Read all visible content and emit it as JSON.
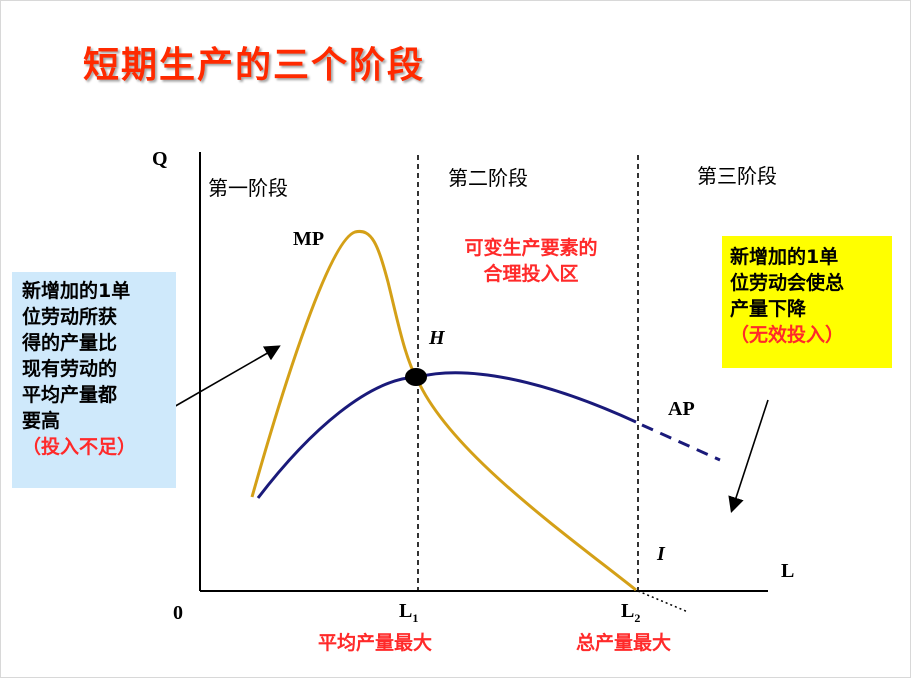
{
  "title": "短期生产的三个阶段",
  "axes": {
    "y_label": "Q",
    "x_label": "L",
    "origin": "0"
  },
  "stages": [
    "第一阶段",
    "第二阶段",
    "第三阶段"
  ],
  "curves": {
    "mp": "MP",
    "ap": "AP",
    "h_point": "H",
    "i_point": "I"
  },
  "ticks": {
    "l1": {
      "base": "L",
      "sub": "1",
      "caption": "平均产量最大"
    },
    "l2": {
      "base": "L",
      "sub": "2",
      "caption": "总产量最大"
    }
  },
  "stage2_note": [
    "可变生产要素的",
    "合理投入区"
  ],
  "left_box": {
    "lines": [
      "新增加的1单",
      "位劳动所获",
      "得的产量比",
      "现有劳动的",
      "平均产量都",
      "要高"
    ],
    "paren": "（投入不足）"
  },
  "right_box": {
    "lines": [
      "新增加的1单",
      "位劳动会使总",
      "产量下降"
    ],
    "paren": "（无效投入）"
  },
  "colors": {
    "title": "#ff2a00",
    "mp_curve": "#d4a017",
    "ap_curve": "#1a1a7a",
    "note_red": "#ff2a2a",
    "left_box_bg": "#cfe9fb",
    "right_box_bg": "#ffff00"
  }
}
